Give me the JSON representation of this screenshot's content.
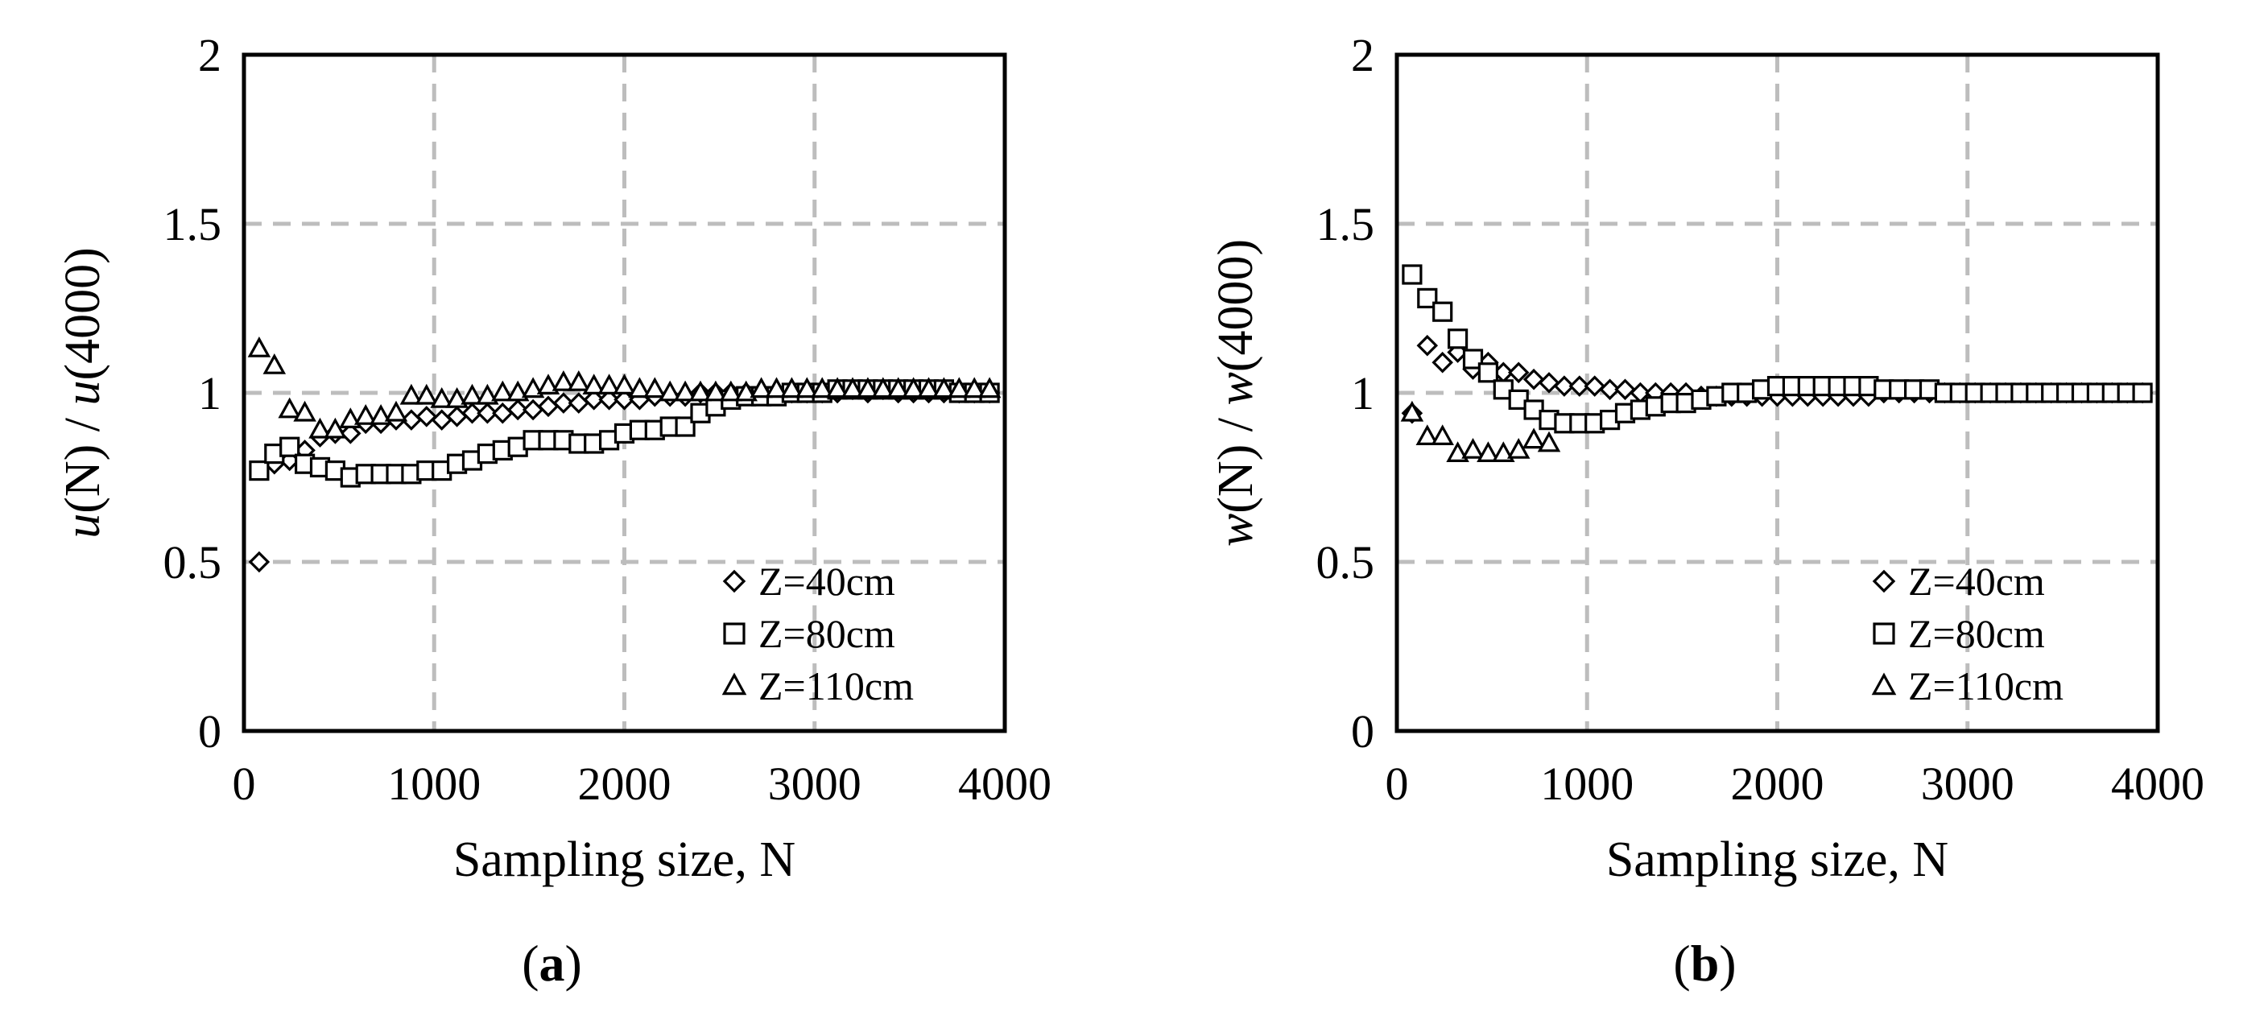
{
  "chart_data": [
    {
      "type": "scatter",
      "panel": "a",
      "caption": "(a)",
      "caption_letter": "a",
      "xlabel": "Sampling size, N",
      "ylabel_var": "u",
      "ylabel_rest": "(N) / ",
      "ylabel_var2": "u",
      "ylabel_end": "(4000)",
      "xlim": [
        0,
        4000
      ],
      "ylim": [
        0,
        2
      ],
      "xticks": [
        "0",
        "1000",
        "2000",
        "3000",
        "4000"
      ],
      "yticks": [
        "0",
        "0.5",
        "1",
        "1.5",
        "2"
      ],
      "grid": true,
      "legend_position": "bottom-right",
      "series": [
        {
          "name": "Z=40cm",
          "marker": "diamond",
          "x": [
            80,
            160,
            240,
            320,
            400,
            480,
            560,
            640,
            720,
            800,
            880,
            960,
            1040,
            1120,
            1200,
            1280,
            1360,
            1440,
            1520,
            1600,
            1680,
            1760,
            1840,
            1920,
            2000,
            2080,
            2160,
            2240,
            2320,
            2400,
            2480,
            2560,
            2640,
            2720,
            2800,
            2880,
            2960,
            3040,
            3120,
            3200,
            3280,
            3360,
            3440,
            3520,
            3600,
            3680,
            3760,
            3840,
            3920
          ],
          "y": [
            0.5,
            0.79,
            0.8,
            0.83,
            0.87,
            0.88,
            0.88,
            0.91,
            0.91,
            0.92,
            0.92,
            0.93,
            0.92,
            0.93,
            0.94,
            0.94,
            0.94,
            0.95,
            0.95,
            0.96,
            0.97,
            0.97,
            0.98,
            0.98,
            0.98,
            0.98,
            0.99,
            0.99,
            0.99,
            1.0,
            1.0,
            1.0,
            1.0,
            1.0,
            1.0,
            1.0,
            1.0,
            1.0,
            1.0,
            1.01,
            1.0,
            1.01,
            1.0,
            1.0,
            1.0,
            1.0,
            1.0,
            1.0,
            1.0
          ]
        },
        {
          "name": "Z=80cm",
          "marker": "square",
          "x": [
            80,
            160,
            240,
            320,
            400,
            480,
            560,
            640,
            720,
            800,
            880,
            960,
            1040,
            1120,
            1200,
            1280,
            1360,
            1440,
            1520,
            1600,
            1680,
            1760,
            1840,
            1920,
            2000,
            2080,
            2160,
            2240,
            2320,
            2400,
            2480,
            2560,
            2640,
            2720,
            2800,
            2880,
            2960,
            3040,
            3120,
            3200,
            3280,
            3360,
            3440,
            3520,
            3600,
            3680,
            3760,
            3840,
            3920
          ],
          "y": [
            0.77,
            0.82,
            0.84,
            0.79,
            0.78,
            0.77,
            0.75,
            0.76,
            0.76,
            0.76,
            0.76,
            0.77,
            0.77,
            0.79,
            0.8,
            0.82,
            0.83,
            0.84,
            0.86,
            0.86,
            0.86,
            0.85,
            0.85,
            0.86,
            0.88,
            0.89,
            0.89,
            0.9,
            0.9,
            0.94,
            0.96,
            0.98,
            0.99,
            0.99,
            0.99,
            1.0,
            1.0,
            1.0,
            1.01,
            1.01,
            1.01,
            1.01,
            1.01,
            1.01,
            1.01,
            1.01,
            1.0,
            1.0,
            1.0
          ]
        },
        {
          "name": "Z=110cm",
          "marker": "triangle",
          "x": [
            80,
            160,
            240,
            320,
            400,
            480,
            560,
            640,
            720,
            800,
            880,
            960,
            1040,
            1120,
            1200,
            1280,
            1360,
            1440,
            1520,
            1600,
            1680,
            1760,
            1840,
            1920,
            2000,
            2080,
            2160,
            2240,
            2320,
            2400,
            2480,
            2560,
            2640,
            2720,
            2800,
            2880,
            2960,
            3040,
            3120,
            3200,
            3280,
            3360,
            3440,
            3520,
            3600,
            3680,
            3760,
            3840,
            3920
          ],
          "y": [
            1.13,
            1.08,
            0.95,
            0.94,
            0.89,
            0.89,
            0.92,
            0.93,
            0.93,
            0.94,
            0.99,
            0.99,
            0.98,
            0.98,
            0.99,
            0.99,
            1.0,
            1.0,
            1.01,
            1.02,
            1.03,
            1.03,
            1.02,
            1.02,
            1.02,
            1.01,
            1.01,
            1.0,
            1.0,
            1.0,
            1.0,
            1.0,
            1.0,
            1.01,
            1.01,
            1.01,
            1.01,
            1.01,
            1.01,
            1.01,
            1.01,
            1.01,
            1.01,
            1.01,
            1.01,
            1.01,
            1.01,
            1.01,
            1.01
          ]
        }
      ]
    },
    {
      "type": "scatter",
      "panel": "b",
      "caption": "(b)",
      "caption_letter": "b",
      "xlabel": "Sampling size, N",
      "ylabel_var": "w",
      "ylabel_rest": "(N) / ",
      "ylabel_var2": "w",
      "ylabel_end": "(4000)",
      "xlim": [
        0,
        4000
      ],
      "ylim": [
        0,
        2
      ],
      "xticks": [
        "0",
        "1000",
        "2000",
        "3000",
        "4000"
      ],
      "yticks": [
        "0",
        "0.5",
        "1",
        "1.5",
        "2"
      ],
      "grid": true,
      "legend_position": "bottom-right",
      "series": [
        {
          "name": "Z=40cm",
          "marker": "diamond",
          "x": [
            80,
            160,
            240,
            320,
            400,
            480,
            560,
            640,
            720,
            800,
            880,
            960,
            1040,
            1120,
            1200,
            1280,
            1360,
            1440,
            1520,
            1600,
            1680,
            1760,
            1840,
            1920,
            2000,
            2080,
            2160,
            2240,
            2320,
            2400,
            2480,
            2560,
            2640,
            2720,
            2800,
            2880,
            2960,
            3040,
            3120,
            3200,
            3280,
            3360,
            3440,
            3520,
            3600,
            3680,
            3760,
            3840,
            3920
          ],
          "y": [
            0.94,
            1.14,
            1.09,
            1.12,
            1.07,
            1.09,
            1.06,
            1.06,
            1.04,
            1.03,
            1.02,
            1.02,
            1.02,
            1.01,
            1.01,
            1.0,
            1.0,
            1.0,
            1.0,
            0.99,
            0.99,
            0.99,
            0.99,
            0.99,
            0.99,
            0.99,
            0.99,
            0.99,
            0.99,
            0.99,
            0.99,
            1.0,
            1.0,
            1.0,
            1.0,
            1.0,
            1.0,
            1.0,
            1.0,
            1.0,
            1.0,
            1.0,
            1.0,
            1.0,
            1.0,
            1.0,
            1.0,
            1.0,
            1.0
          ]
        },
        {
          "name": "Z=80cm",
          "marker": "square",
          "x": [
            80,
            160,
            240,
            320,
            400,
            480,
            560,
            640,
            720,
            800,
            880,
            960,
            1040,
            1120,
            1200,
            1280,
            1360,
            1440,
            1520,
            1600,
            1680,
            1760,
            1840,
            1920,
            2000,
            2080,
            2160,
            2240,
            2320,
            2400,
            2480,
            2560,
            2640,
            2720,
            2800,
            2880,
            2960,
            3040,
            3120,
            3200,
            3280,
            3360,
            3440,
            3520,
            3600,
            3680,
            3760,
            3840,
            3920
          ],
          "y": [
            1.35,
            1.28,
            1.24,
            1.16,
            1.1,
            1.06,
            1.01,
            0.98,
            0.95,
            0.92,
            0.91,
            0.91,
            0.91,
            0.92,
            0.94,
            0.95,
            0.96,
            0.97,
            0.97,
            0.98,
            0.99,
            1.0,
            1.0,
            1.01,
            1.02,
            1.02,
            1.02,
            1.02,
            1.02,
            1.02,
            1.02,
            1.01,
            1.01,
            1.01,
            1.01,
            1.0,
            1.0,
            1.0,
            1.0,
            1.0,
            1.0,
            1.0,
            1.0,
            1.0,
            1.0,
            1.0,
            1.0,
            1.0,
            1.0
          ]
        },
        {
          "name": "Z=110cm",
          "marker": "triangle",
          "x": [
            80,
            160,
            240,
            320,
            400,
            480,
            560,
            640,
            720,
            800
          ],
          "y": [
            0.94,
            0.87,
            0.87,
            0.82,
            0.83,
            0.82,
            0.82,
            0.83,
            0.86,
            0.85
          ]
        }
      ]
    }
  ]
}
